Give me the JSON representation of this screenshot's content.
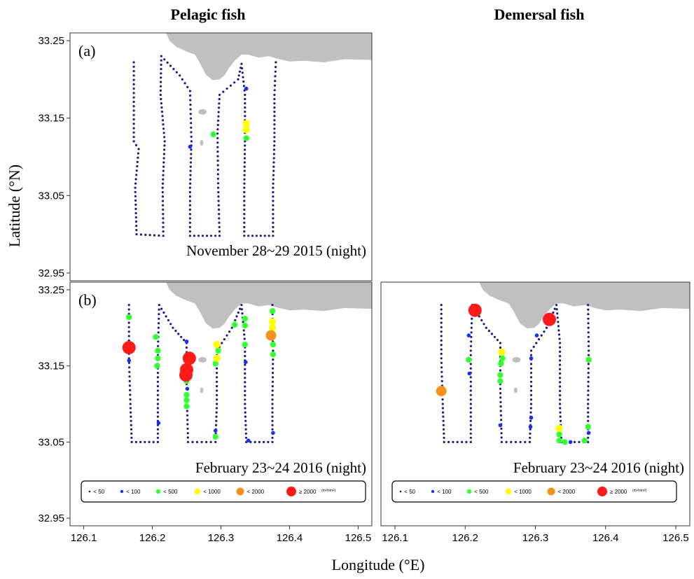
{
  "column_titles": [
    "Pelagic fish",
    "Demersal fish"
  ],
  "xlabel": "Longitude (°E)",
  "ylabel": "Latitude (°N)",
  "colors": {
    "lt50": "#1a1a80",
    "lt100": "#1a2ff0",
    "lt500": "#33ff33",
    "lt1000": "#ffff00",
    "lt2000": "#f5921e",
    "ge2000": "#ff1a1a",
    "land": "#c0c0c0"
  },
  "legend": {
    "items": [
      {
        "label": "< 50",
        "cls": "lt50"
      },
      {
        "label": "< 100",
        "cls": "lt100"
      },
      {
        "label": "< 500",
        "cls": "lt500"
      },
      {
        "label": "< 1000",
        "cls": "lt1000"
      },
      {
        "label": "< 2000",
        "cls": "lt2000"
      },
      {
        "label": "≥ 2000",
        "cls": "ge2000"
      }
    ],
    "unit": "(m²/nmi²)"
  },
  "chart_data": [
    {
      "type": "scatter",
      "panel": "(a)",
      "column": "Pelagic fish",
      "date": "November 28~29 2015 (night)",
      "xlim": [
        126.08,
        126.52
      ],
      "ylim": [
        32.94,
        33.26
      ],
      "xticks": [
        "126.1",
        "126.2",
        "126.3",
        "126.4",
        "126.5"
      ],
      "yticks": [
        "33.25",
        "33.15",
        "33.05",
        "32.95"
      ],
      "has_legend": false,
      "track": [
        [
          126.173,
          33.222
        ],
        [
          126.173,
          33.12
        ],
        [
          126.18,
          33.11
        ],
        [
          126.175,
          33.06
        ],
        [
          126.177,
          33.0
        ],
        [
          126.216,
          32.998
        ],
        [
          126.215,
          33.06
        ],
        [
          126.218,
          33.12
        ],
        [
          126.212,
          33.18
        ],
        [
          126.213,
          33.23
        ],
        [
          126.24,
          33.205
        ],
        [
          126.255,
          33.185
        ],
        [
          126.257,
          33.12
        ],
        [
          126.255,
          33.06
        ],
        [
          126.255,
          32.998
        ],
        [
          126.298,
          32.998
        ],
        [
          126.296,
          33.06
        ],
        [
          126.295,
          33.13
        ],
        [
          126.298,
          33.18
        ],
        [
          126.325,
          33.2
        ],
        [
          126.33,
          33.22
        ],
        [
          126.335,
          33.18
        ],
        [
          126.335,
          33.12
        ],
        [
          126.334,
          33.06
        ],
        [
          126.334,
          32.998
        ],
        [
          126.376,
          32.998
        ],
        [
          126.376,
          33.06
        ],
        [
          126.378,
          33.12
        ],
        [
          126.378,
          33.18
        ],
        [
          126.38,
          33.222
        ]
      ],
      "points": [
        {
          "lon": 126.289,
          "lat": 33.129,
          "cls": "lt500"
        },
        {
          "lon": 126.337,
          "lat": 33.188,
          "cls": "lt100"
        },
        {
          "lon": 126.337,
          "lat": 33.143,
          "cls": "lt1000"
        },
        {
          "lon": 126.337,
          "lat": 33.135,
          "cls": "lt1000"
        },
        {
          "lon": 126.337,
          "lat": 33.124,
          "cls": "lt500"
        },
        {
          "lon": 126.255,
          "lat": 33.113,
          "cls": "lt100"
        }
      ]
    },
    {
      "type": "scatter",
      "panel": "(b)",
      "column": "Pelagic fish",
      "date": "February 23~24 2016 (night)",
      "xlim": [
        126.08,
        126.52
      ],
      "ylim": [
        32.94,
        33.26
      ],
      "xticks": [
        "126.1",
        "126.2",
        "126.3",
        "126.4",
        "126.5"
      ],
      "yticks": [
        "33.25",
        "33.15",
        "33.05",
        "32.95"
      ],
      "has_legend": true,
      "track": [
        [
          126.166,
          33.23
        ],
        [
          126.166,
          33.16
        ],
        [
          126.168,
          33.1
        ],
        [
          126.17,
          33.05
        ],
        [
          126.208,
          33.05
        ],
        [
          126.208,
          33.1
        ],
        [
          126.208,
          33.17
        ],
        [
          126.21,
          33.23
        ],
        [
          126.23,
          33.2
        ],
        [
          126.25,
          33.18
        ],
        [
          126.25,
          33.12
        ],
        [
          126.252,
          33.05
        ],
        [
          126.292,
          33.05
        ],
        [
          126.294,
          33.1
        ],
        [
          126.294,
          33.17
        ],
        [
          126.316,
          33.2
        ],
        [
          126.33,
          33.23
        ],
        [
          126.335,
          33.18
        ],
        [
          126.335,
          33.1
        ],
        [
          126.337,
          33.05
        ],
        [
          126.375,
          33.05
        ],
        [
          126.375,
          33.1
        ],
        [
          126.376,
          33.17
        ],
        [
          126.375,
          33.23
        ]
      ],
      "points": [
        {
          "lon": 126.166,
          "lat": 33.214,
          "cls": "lt500"
        },
        {
          "lon": 126.166,
          "lat": 33.174,
          "cls": "ge2000"
        },
        {
          "lon": 126.166,
          "lat": 33.157,
          "cls": "lt100"
        },
        {
          "lon": 126.205,
          "lat": 33.188,
          "cls": "lt500"
        },
        {
          "lon": 126.208,
          "lat": 33.17,
          "cls": "lt500"
        },
        {
          "lon": 126.208,
          "lat": 33.16,
          "cls": "lt500"
        },
        {
          "lon": 126.207,
          "lat": 33.15,
          "cls": "lt500"
        },
        {
          "lon": 126.209,
          "lat": 33.075,
          "cls": "lt100"
        },
        {
          "lon": 126.25,
          "lat": 33.182,
          "cls": "lt100"
        },
        {
          "lon": 126.254,
          "lat": 33.16,
          "cls": "ge2000"
        },
        {
          "lon": 126.252,
          "lat": 33.153,
          "cls": "lt500"
        },
        {
          "lon": 126.25,
          "lat": 33.145,
          "cls": "ge2000"
        },
        {
          "lon": 126.249,
          "lat": 33.138,
          "cls": "ge2000"
        },
        {
          "lon": 126.25,
          "lat": 33.13,
          "cls": "lt500"
        },
        {
          "lon": 126.251,
          "lat": 33.12,
          "cls": "lt100"
        },
        {
          "lon": 126.25,
          "lat": 33.112,
          "cls": "lt500"
        },
        {
          "lon": 126.25,
          "lat": 33.105,
          "cls": "lt500"
        },
        {
          "lon": 126.25,
          "lat": 33.097,
          "cls": "lt500"
        },
        {
          "lon": 126.294,
          "lat": 33.178,
          "cls": "lt1000"
        },
        {
          "lon": 126.296,
          "lat": 33.17,
          "cls": "lt500"
        },
        {
          "lon": 126.294,
          "lat": 33.16,
          "cls": "lt1000"
        },
        {
          "lon": 126.292,
          "lat": 33.153,
          "cls": "lt500"
        },
        {
          "lon": 126.292,
          "lat": 33.065,
          "cls": "lt100"
        },
        {
          "lon": 126.292,
          "lat": 33.057,
          "cls": "lt500"
        },
        {
          "lon": 126.32,
          "lat": 33.204,
          "cls": "lt500"
        },
        {
          "lon": 126.335,
          "lat": 33.212,
          "cls": "lt500"
        },
        {
          "lon": 126.335,
          "lat": 33.203,
          "cls": "lt500"
        },
        {
          "lon": 126.335,
          "lat": 33.178,
          "cls": "lt500"
        },
        {
          "lon": 126.336,
          "lat": 33.155,
          "cls": "lt100"
        },
        {
          "lon": 126.34,
          "lat": 33.052,
          "cls": "lt100"
        },
        {
          "lon": 126.375,
          "lat": 33.222,
          "cls": "lt500"
        },
        {
          "lon": 126.375,
          "lat": 33.208,
          "cls": "lt1000"
        },
        {
          "lon": 126.375,
          "lat": 33.2,
          "cls": "lt1000"
        },
        {
          "lon": 126.373,
          "lat": 33.19,
          "cls": "lt2000"
        },
        {
          "lon": 126.376,
          "lat": 33.178,
          "cls": "lt500"
        },
        {
          "lon": 126.376,
          "lat": 33.165,
          "cls": "lt500"
        },
        {
          "lon": 126.376,
          "lat": 33.062,
          "cls": "lt100"
        }
      ]
    },
    {
      "type": "scatter",
      "panel": "",
      "column": "Demersal fish",
      "date": "February 23~24 2016 (night)",
      "xlim": [
        126.08,
        126.52
      ],
      "ylim": [
        32.94,
        33.26
      ],
      "xticks": [
        "126.1",
        "126.2",
        "126.3",
        "126.4",
        "126.5"
      ],
      "yticks": [],
      "has_legend": true,
      "track": [
        [
          126.166,
          33.23
        ],
        [
          126.166,
          33.16
        ],
        [
          126.168,
          33.1
        ],
        [
          126.17,
          33.05
        ],
        [
          126.208,
          33.05
        ],
        [
          126.208,
          33.1
        ],
        [
          126.208,
          33.17
        ],
        [
          126.21,
          33.23
        ],
        [
          126.23,
          33.2
        ],
        [
          126.25,
          33.18
        ],
        [
          126.25,
          33.12
        ],
        [
          126.252,
          33.05
        ],
        [
          126.292,
          33.05
        ],
        [
          126.294,
          33.1
        ],
        [
          126.294,
          33.17
        ],
        [
          126.316,
          33.2
        ],
        [
          126.33,
          33.23
        ],
        [
          126.335,
          33.18
        ],
        [
          126.335,
          33.1
        ],
        [
          126.337,
          33.05
        ],
        [
          126.375,
          33.05
        ],
        [
          126.375,
          33.1
        ],
        [
          126.376,
          33.17
        ],
        [
          126.375,
          33.23
        ]
      ],
      "points": [
        {
          "lon": 126.166,
          "lat": 33.117,
          "cls": "lt2000"
        },
        {
          "lon": 126.205,
          "lat": 33.19,
          "cls": "lt100"
        },
        {
          "lon": 126.205,
          "lat": 33.158,
          "cls": "lt500"
        },
        {
          "lon": 126.206,
          "lat": 33.14,
          "cls": "lt100"
        },
        {
          "lon": 126.214,
          "lat": 33.223,
          "cls": "ge2000"
        },
        {
          "lon": 126.252,
          "lat": 33.168,
          "cls": "lt1000"
        },
        {
          "lon": 126.253,
          "lat": 33.16,
          "cls": "lt500"
        },
        {
          "lon": 126.251,
          "lat": 33.153,
          "cls": "lt500"
        },
        {
          "lon": 126.25,
          "lat": 33.138,
          "cls": "lt500"
        },
        {
          "lon": 126.25,
          "lat": 33.13,
          "cls": "lt500"
        },
        {
          "lon": 126.25,
          "lat": 33.072,
          "cls": "lt100"
        },
        {
          "lon": 126.294,
          "lat": 33.16,
          "cls": "lt100"
        },
        {
          "lon": 126.294,
          "lat": 33.082,
          "cls": "lt100"
        },
        {
          "lon": 126.293,
          "lat": 33.07,
          "cls": "lt100"
        },
        {
          "lon": 126.302,
          "lat": 33.19,
          "cls": "lt100"
        },
        {
          "lon": 126.32,
          "lat": 33.211,
          "cls": "ge2000"
        },
        {
          "lon": 126.334,
          "lat": 33.068,
          "cls": "lt1000"
        },
        {
          "lon": 126.334,
          "lat": 33.06,
          "cls": "lt500"
        },
        {
          "lon": 126.334,
          "lat": 33.052,
          "cls": "lt500"
        },
        {
          "lon": 126.342,
          "lat": 33.05,
          "cls": "lt500"
        },
        {
          "lon": 126.35,
          "lat": 33.05,
          "cls": "lt100"
        },
        {
          "lon": 126.37,
          "lat": 33.052,
          "cls": "lt500"
        },
        {
          "lon": 126.375,
          "lat": 33.07,
          "cls": "lt500"
        },
        {
          "lon": 126.376,
          "lat": 33.062,
          "cls": "lt100"
        },
        {
          "lon": 126.376,
          "lat": 33.158,
          "cls": "lt500"
        }
      ]
    }
  ]
}
